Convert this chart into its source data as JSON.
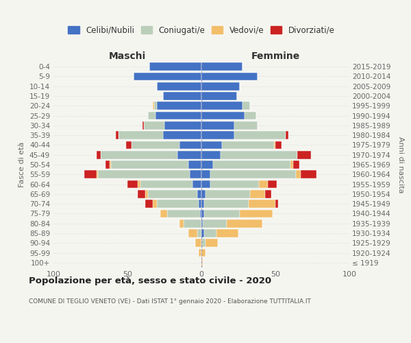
{
  "age_groups": [
    "100+",
    "95-99",
    "90-94",
    "85-89",
    "80-84",
    "75-79",
    "70-74",
    "65-69",
    "60-64",
    "55-59",
    "50-54",
    "45-49",
    "40-44",
    "35-39",
    "30-34",
    "25-29",
    "20-24",
    "15-19",
    "10-14",
    "5-9",
    "0-4"
  ],
  "birth_years": [
    "≤ 1919",
    "1920-1924",
    "1925-1929",
    "1930-1934",
    "1935-1939",
    "1940-1944",
    "1945-1949",
    "1950-1954",
    "1955-1959",
    "1960-1964",
    "1965-1969",
    "1970-1974",
    "1975-1979",
    "1980-1984",
    "1985-1989",
    "1990-1994",
    "1995-1999",
    "2000-2004",
    "2005-2009",
    "2010-2014",
    "2015-2019"
  ],
  "colors": {
    "celibi": "#4472C4",
    "coniugati": "#BACEBA",
    "vedovi": "#F2BE6A",
    "divorziati": "#CC2222",
    "background": "#F5F5F0"
  },
  "maschi": {
    "celibi": [
      0,
      0,
      0,
      0,
      0,
      1,
      2,
      3,
      6,
      8,
      9,
      16,
      15,
      26,
      25,
      31,
      30,
      26,
      30,
      46,
      35
    ],
    "coniugati": [
      0,
      0,
      0,
      3,
      12,
      22,
      28,
      33,
      35,
      62,
      52,
      52,
      32,
      30,
      14,
      5,
      2,
      0,
      0,
      0,
      0
    ],
    "vedovi": [
      0,
      2,
      4,
      6,
      3,
      5,
      3,
      2,
      2,
      1,
      1,
      0,
      0,
      0,
      0,
      0,
      1,
      0,
      0,
      0,
      0
    ],
    "divorziati": [
      0,
      0,
      0,
      0,
      0,
      0,
      5,
      5,
      7,
      8,
      3,
      3,
      4,
      2,
      1,
      0,
      0,
      0,
      0,
      0,
      0
    ]
  },
  "femmine": {
    "celibi": [
      0,
      0,
      0,
      2,
      1,
      2,
      2,
      3,
      6,
      6,
      8,
      13,
      14,
      22,
      22,
      29,
      28,
      24,
      26,
      38,
      28
    ],
    "coniugati": [
      0,
      0,
      3,
      8,
      16,
      24,
      30,
      30,
      33,
      58,
      52,
      52,
      35,
      35,
      16,
      8,
      5,
      0,
      0,
      0,
      0
    ],
    "vedovi": [
      1,
      3,
      8,
      15,
      24,
      22,
      18,
      10,
      6,
      3,
      2,
      0,
      1,
      0,
      0,
      0,
      0,
      0,
      0,
      0,
      0
    ],
    "divorziati": [
      0,
      0,
      0,
      0,
      0,
      0,
      2,
      4,
      6,
      11,
      4,
      9,
      4,
      2,
      0,
      0,
      0,
      0,
      0,
      0,
      0
    ]
  },
  "title": "Popolazione per età, sesso e stato civile - 2020",
  "subtitle": "COMUNE DI TEGLIO VENETO (VE) - Dati ISTAT 1° gennaio 2020 - Elaborazione TUTTITALIA.IT",
  "xlabel_left": "Maschi",
  "xlabel_right": "Femmine",
  "ylabel_left": "Fasce di età",
  "ylabel_right": "Anni di nascita",
  "xlim": 100,
  "legend_labels": [
    "Celibi/Nubili",
    "Coniugati/e",
    "Vedovi/e",
    "Divorziati/e"
  ],
  "figsize": [
    6.0,
    5.0
  ],
  "dpi": 100
}
